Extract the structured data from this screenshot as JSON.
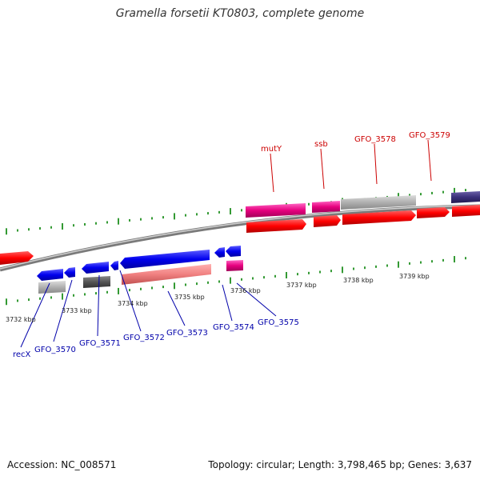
{
  "title": "Gramella forsetii KT0803, complete genome",
  "footer": {
    "accession": "Accession: NC_008571",
    "topology": "Topology: circular; Length: 3,798,465 bp; Genes: 3,637"
  },
  "scale_labels": [
    "3732 kbp",
    "3733 kbp",
    "3734 kbp",
    "3735 kbp",
    "3736 kbp",
    "3737 kbp",
    "3738 kbp",
    "3739 kbp"
  ],
  "gene_labels_top": [
    "mutY",
    "ssb",
    "GFO_3578",
    "GFO_3579"
  ],
  "gene_labels_bottom": [
    "recX",
    "GFO_3570",
    "GFO_3571",
    "GFO_3572",
    "GFO_3573",
    "GFO_3574",
    "GFO_3575"
  ],
  "colors": {
    "forward_cds": "#ff0000",
    "reverse_cds": "#0000ee",
    "forward_feature": "#e6007e",
    "pink_feature": "#f08080",
    "grey_feature": "#b0b0b0",
    "dark_grey_feature": "#555555",
    "navy_feature": "#3a2f7a",
    "backbone": "#7a7a7a",
    "tick": "#008000"
  }
}
